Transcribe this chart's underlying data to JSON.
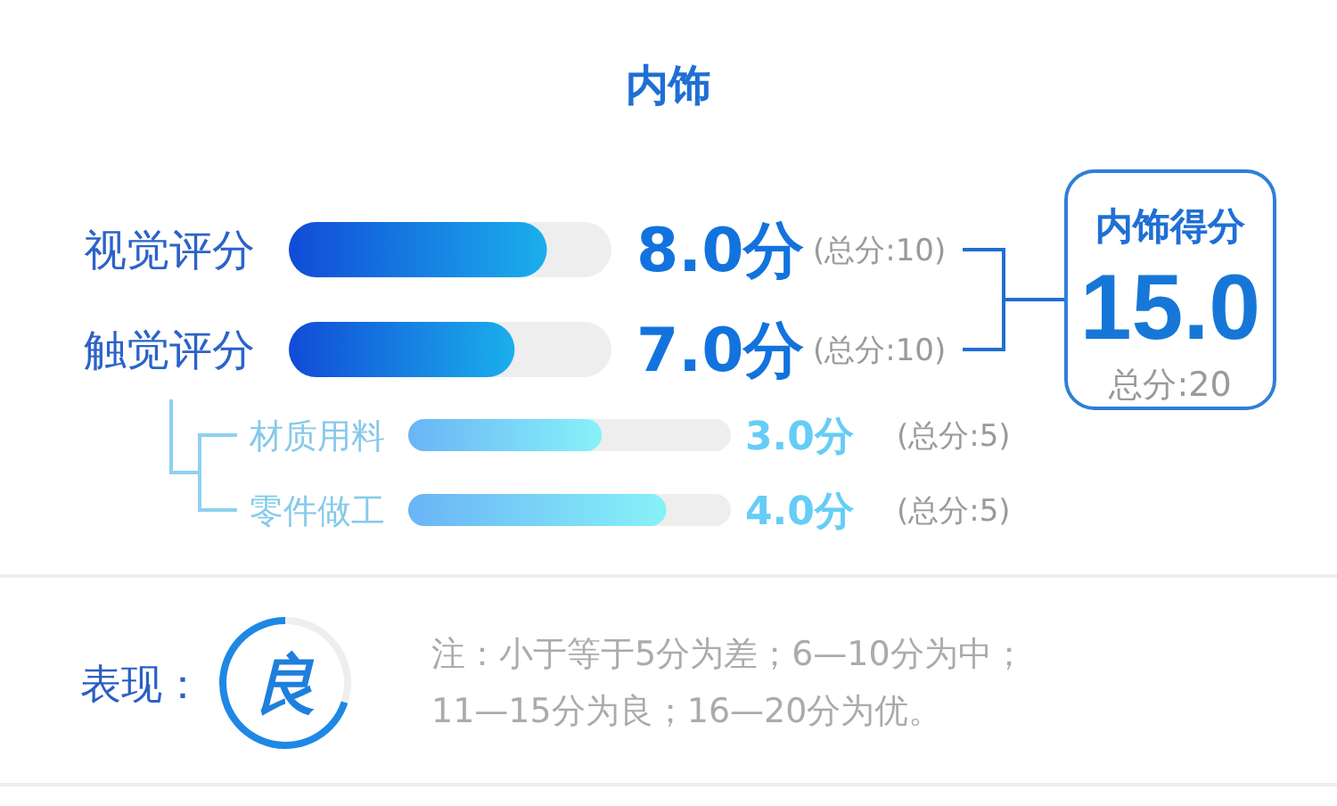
{
  "chart_data": [
    {
      "type": "bar",
      "title": "内饰",
      "orientation": "horizontal",
      "categories": [
        "视觉评分",
        "触觉评分"
      ],
      "values": [
        8.0,
        7.0
      ],
      "value_labels": [
        "8.0分",
        "7.0分"
      ],
      "color": "#1379ea",
      "xlim": [
        0,
        10
      ],
      "tick_labels": "y",
      "annotations": [
        "(总分:10)",
        "(总分:10)"
      ]
    },
    {
      "type": "bar",
      "orientation": "horizontal",
      "categories": [
        "材质用料",
        "零件做工"
      ],
      "values": [
        3.0,
        4.0
      ],
      "value_labels": [
        "3.0分",
        "4.0分"
      ],
      "color": "#7dd4f7",
      "xlim": [
        0,
        5
      ],
      "tick_labels": "y",
      "annotations": [
        "(总分:5)",
        "(总分:5)"
      ]
    },
    {
      "type": "other",
      "title": "内饰得分",
      "annotations": [
        "15.0",
        "总分:20"
      ]
    },
    {
      "type": "donut",
      "title": "表现：",
      "categories": [
        null,
        null
      ],
      "values": [
        30,
        70
      ],
      "colors": [
        "#eeeeee",
        "#1e88e5"
      ],
      "annotations": [
        "良",
        "注：小于等于5分为差；6—10分为中；",
        "11—15分为良；16—20分为优。"
      ]
    }
  ]
}
